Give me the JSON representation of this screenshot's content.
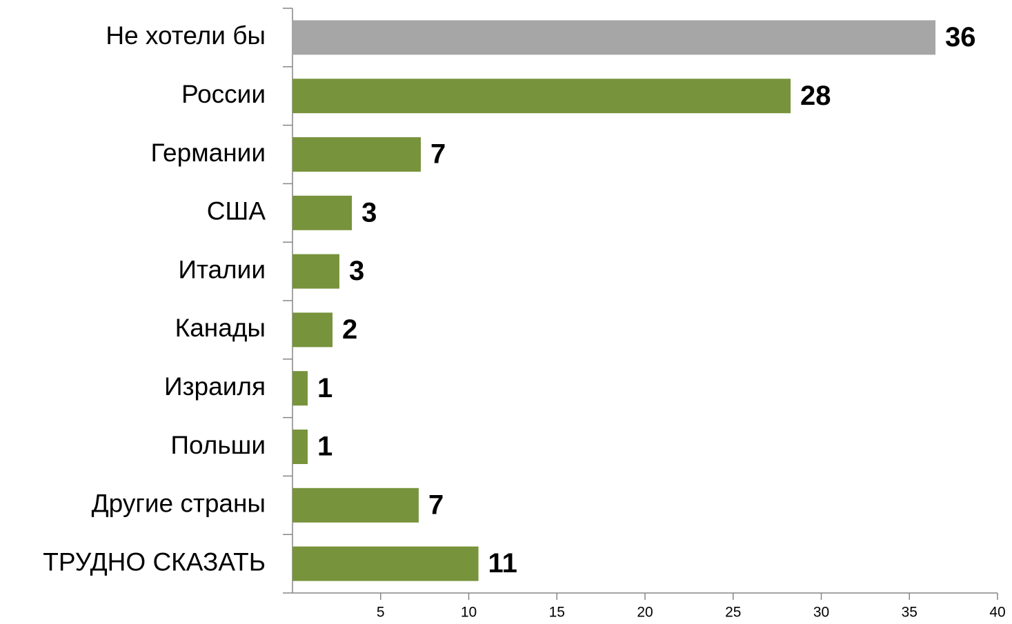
{
  "chart_data": {
    "type": "bar",
    "orientation": "horizontal",
    "categories": [
      "Не хотели бы",
      "России",
      "Германии",
      "США",
      "Италии",
      "Канады",
      "Израиля",
      "Польши",
      "Другие страны",
      "ТРУДНО СКАЗАТЬ"
    ],
    "values": [
      36.48,
      28.26,
      7.28,
      3.37,
      2.66,
      2.27,
      0.86,
      0.86,
      7.16,
      10.55
    ],
    "value_labels": [
      "36",
      "28",
      "7",
      "3",
      "3",
      "2",
      "1",
      "1",
      "7",
      "11"
    ],
    "colors": [
      "#a6a6a6",
      "#77933c",
      "#77933c",
      "#77933c",
      "#77933c",
      "#77933c",
      "#77933c",
      "#77933c",
      "#77933c",
      "#77933c"
    ],
    "xlim": [
      0,
      40
    ],
    "xticks": [
      5,
      10,
      15,
      20,
      25,
      30,
      35,
      40
    ],
    "grid": false
  }
}
